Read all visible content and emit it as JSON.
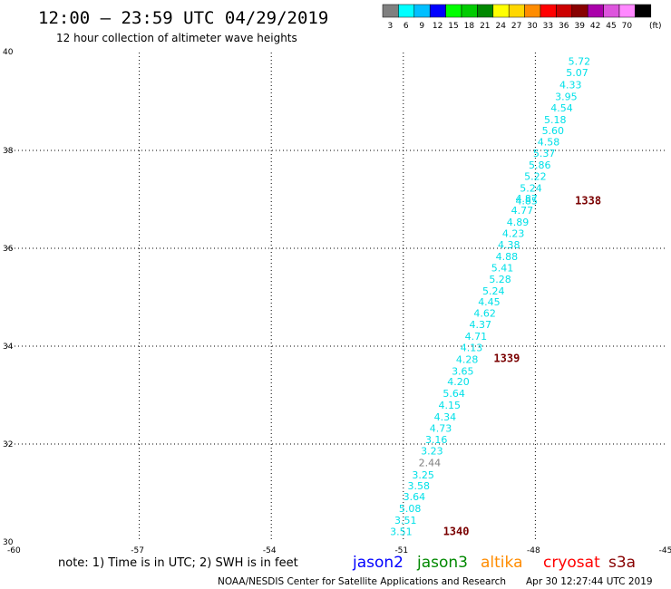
{
  "header": {
    "title": "12:00 – 23:59 UTC 04/29/2019",
    "subtitle": "12 hour collection of altimeter wave heights"
  },
  "scale_bar": {
    "unit_label": "(ft)",
    "bins": [
      {
        "label": "3",
        "color": "#808080"
      },
      {
        "label": "6",
        "color": "#00ffff"
      },
      {
        "label": "9",
        "color": "#00bfff"
      },
      {
        "label": "12",
        "color": "#0000ff"
      },
      {
        "label": "15",
        "color": "#00ff00"
      },
      {
        "label": "18",
        "color": "#00cc00"
      },
      {
        "label": "21",
        "color": "#008800"
      },
      {
        "label": "24",
        "color": "#ffff00"
      },
      {
        "label": "27",
        "color": "#ffd700"
      },
      {
        "label": "30",
        "color": "#ff8c00"
      },
      {
        "label": "33",
        "color": "#ff0000"
      },
      {
        "label": "36",
        "color": "#cc0000"
      },
      {
        "label": "39",
        "color": "#880000"
      },
      {
        "label": "42",
        "color": "#aa00aa"
      },
      {
        "label": "45",
        "color": "#dd55dd"
      },
      {
        "label": "70",
        "color": "#ff88ff"
      },
      {
        "label": "",
        "color": "#000000"
      }
    ]
  },
  "footer": {
    "note": "note: 1) Time is in UTC; 2) SWH is in feet",
    "credit": "NOAA/NESDIS Center for Satellite Applications and Research",
    "timestamp": "Apr 30 12:27:44 UTC 2019",
    "legend": [
      {
        "name": "jason2",
        "color": "#0000ff"
      },
      {
        "name": "jason3",
        "color": "#008800"
      },
      {
        "name": "altika",
        "color": "#ff8c00"
      },
      {
        "name": "cryosat",
        "color": "#ff0000"
      },
      {
        "name": "s3a",
        "color": "#880000"
      }
    ]
  },
  "chart_data": {
    "type": "scatter",
    "xlim": [
      -60,
      -45
    ],
    "ylim": [
      30,
      40
    ],
    "x_ticks": [
      "-60",
      "-57",
      "-54",
      "-51",
      "-48",
      "-45"
    ],
    "y_ticks": [
      "30",
      "32",
      "34",
      "36",
      "38",
      "40"
    ],
    "grid": true,
    "grid_style": "dotted",
    "series": [
      {
        "name": "swh_labels",
        "color": "#00e0e8",
        "points": [
          {
            "x": -47.0,
            "y": 39.75,
            "label": "5.72"
          },
          {
            "x": -47.05,
            "y": 39.52,
            "label": "5.07"
          },
          {
            "x": -47.2,
            "y": 39.27,
            "label": "4.33"
          },
          {
            "x": -47.3,
            "y": 39.03,
            "label": "3.95"
          },
          {
            "x": -47.4,
            "y": 38.8,
            "label": "4.54"
          },
          {
            "x": -47.55,
            "y": 38.56,
            "label": "5.18"
          },
          {
            "x": -47.6,
            "y": 38.33,
            "label": "5.60"
          },
          {
            "x": -47.7,
            "y": 38.1,
            "label": "4.58"
          },
          {
            "x": -47.8,
            "y": 37.87,
            "label": "5.37"
          },
          {
            "x": -47.9,
            "y": 37.63,
            "label": "5.86"
          },
          {
            "x": -48.0,
            "y": 37.4,
            "label": "5.22"
          },
          {
            "x": -48.1,
            "y": 37.16,
            "label": "5.24"
          },
          {
            "x": -48.2,
            "y": 36.94,
            "label": "4.87"
          },
          {
            "x": -48.2,
            "y": 36.9,
            "label": "4.85"
          },
          {
            "x": -48.3,
            "y": 36.7,
            "label": "4.77"
          },
          {
            "x": -48.4,
            "y": 36.46,
            "label": "4.89"
          },
          {
            "x": -48.5,
            "y": 36.23,
            "label": "4.23"
          },
          {
            "x": -48.6,
            "y": 36.0,
            "label": "4.38"
          },
          {
            "x": -48.65,
            "y": 35.76,
            "label": "4.88"
          },
          {
            "x": -48.75,
            "y": 35.53,
            "label": "5.41"
          },
          {
            "x": -48.8,
            "y": 35.3,
            "label": "5.28"
          },
          {
            "x": -48.95,
            "y": 35.06,
            "label": "5.24"
          },
          {
            "x": -49.05,
            "y": 34.83,
            "label": "4.45"
          },
          {
            "x": -49.15,
            "y": 34.6,
            "label": "4.62"
          },
          {
            "x": -49.25,
            "y": 34.37,
            "label": "4.37"
          },
          {
            "x": -49.35,
            "y": 34.13,
            "label": "4.71"
          },
          {
            "x": -49.45,
            "y": 33.9,
            "label": "4.13"
          },
          {
            "x": -49.55,
            "y": 33.66,
            "label": "4.28"
          },
          {
            "x": -49.65,
            "y": 33.42,
            "label": "3.65"
          },
          {
            "x": -49.75,
            "y": 33.2,
            "label": "4.20"
          },
          {
            "x": -49.85,
            "y": 32.96,
            "label": "5.64"
          },
          {
            "x": -49.95,
            "y": 32.72,
            "label": "4.15"
          },
          {
            "x": -50.05,
            "y": 32.48,
            "label": "4.34"
          },
          {
            "x": -50.15,
            "y": 32.25,
            "label": "4.73"
          },
          {
            "x": -50.25,
            "y": 32.02,
            "label": "3.16"
          },
          {
            "x": -50.35,
            "y": 31.79,
            "label": "3.23"
          },
          {
            "x": -50.4,
            "y": 31.55,
            "label": "2.44",
            "color": "#808080"
          },
          {
            "x": -50.55,
            "y": 31.3,
            "label": "3.25"
          },
          {
            "x": -50.65,
            "y": 31.07,
            "label": "3.58"
          },
          {
            "x": -50.75,
            "y": 30.85,
            "label": "3.64"
          },
          {
            "x": -50.85,
            "y": 30.61,
            "label": "5.08"
          },
          {
            "x": -50.95,
            "y": 30.37,
            "label": "3.51"
          },
          {
            "x": -51.05,
            "y": 30.14,
            "label": "3.51"
          }
        ]
      },
      {
        "name": "time_labels",
        "color": "#7a0000",
        "points": [
          {
            "x": -46.8,
            "y": 36.9,
            "label": "1338"
          },
          {
            "x": -48.65,
            "y": 33.68,
            "label": "1339"
          },
          {
            "x": -49.8,
            "y": 30.14,
            "label": "1340"
          }
        ]
      }
    ]
  }
}
